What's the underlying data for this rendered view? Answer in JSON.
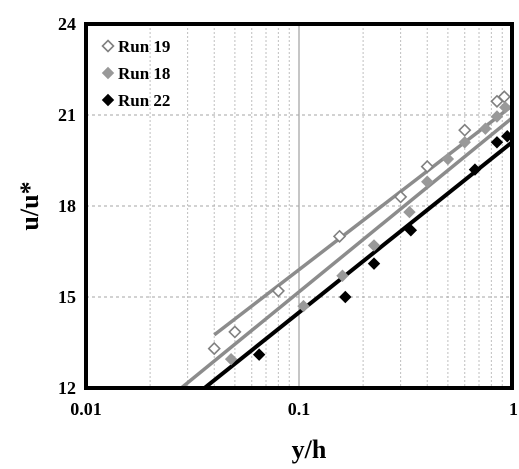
{
  "chart_data": {
    "type": "scatter",
    "xscale": "log",
    "xlim": [
      0.01,
      1
    ],
    "ylim": [
      12,
      24
    ],
    "xticks": [
      "0.01",
      "0.1",
      "1"
    ],
    "yticks": [
      "12",
      "15",
      "18",
      "21",
      "24"
    ],
    "xlabel": "y/h",
    "ylabel": "u/u*",
    "grid": true,
    "legend_position": "top-left",
    "series": [
      {
        "name": "Run 19",
        "marker": "open-diamond",
        "color": "#808080",
        "points": [
          [
            0.04,
            13.3
          ],
          [
            0.05,
            13.85
          ],
          [
            0.08,
            15.2
          ],
          [
            0.155,
            17.0
          ],
          [
            0.3,
            18.3
          ],
          [
            0.4,
            19.3
          ],
          [
            0.6,
            20.5
          ],
          [
            0.85,
            21.45
          ],
          [
            0.92,
            21.6
          ]
        ],
        "fit": [
          [
            0.04,
            13.75
          ],
          [
            1.0,
            21.3
          ]
        ]
      },
      {
        "name": "Run 18",
        "marker": "filled-diamond",
        "color": "#999999",
        "points": [
          [
            0.048,
            12.95
          ],
          [
            0.105,
            14.7
          ],
          [
            0.16,
            15.7
          ],
          [
            0.225,
            16.7
          ],
          [
            0.33,
            17.8
          ],
          [
            0.4,
            18.8
          ],
          [
            0.5,
            19.55
          ],
          [
            0.6,
            20.1
          ],
          [
            0.75,
            20.55
          ],
          [
            0.85,
            20.95
          ],
          [
            0.93,
            21.25
          ]
        ],
        "fit": [
          [
            0.028,
            12.0
          ],
          [
            1.0,
            20.9
          ]
        ]
      },
      {
        "name": "Run 22",
        "marker": "filled-diamond",
        "color": "#000000",
        "points": [
          [
            0.065,
            13.1
          ],
          [
            0.165,
            15.0
          ],
          [
            0.225,
            16.1
          ],
          [
            0.335,
            17.2
          ],
          [
            0.67,
            19.2
          ],
          [
            0.85,
            20.1
          ],
          [
            0.95,
            20.3
          ]
        ],
        "fit": [
          [
            0.036,
            12.0
          ],
          [
            1.0,
            20.1
          ]
        ]
      }
    ]
  }
}
